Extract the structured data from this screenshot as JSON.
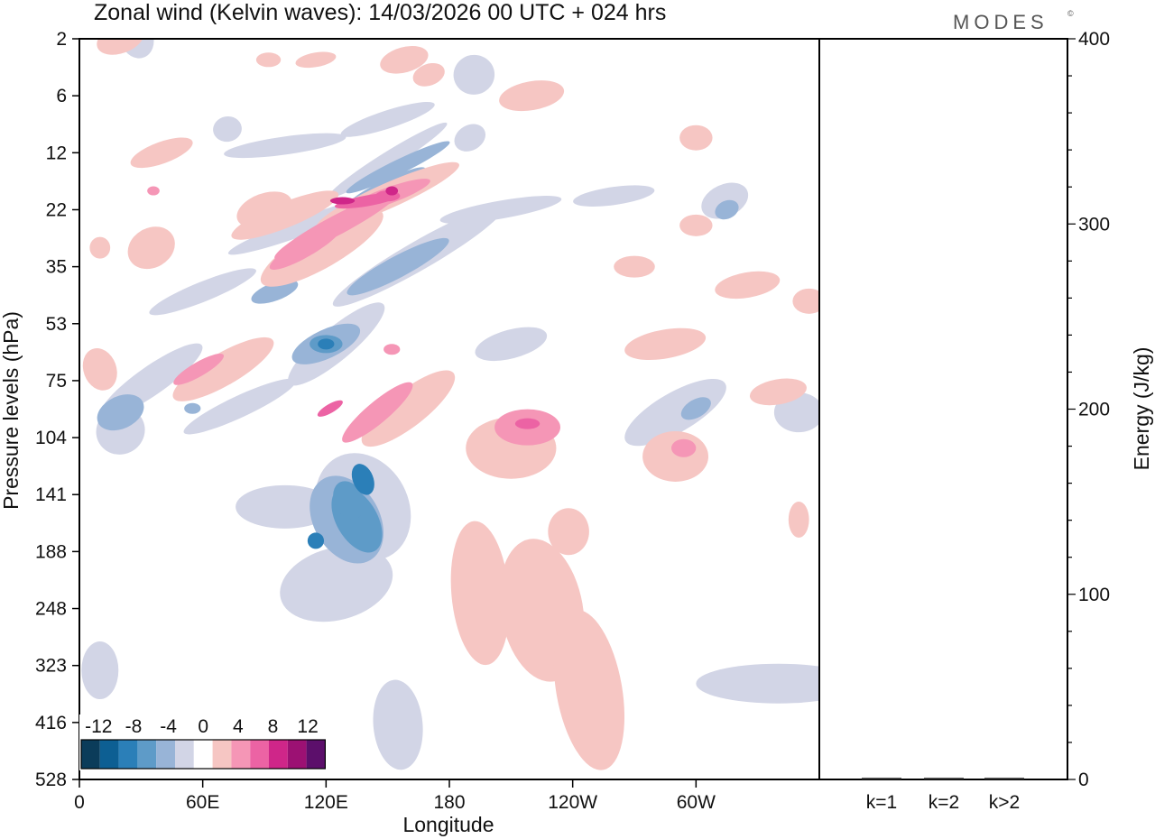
{
  "header": {
    "title": "Zonal wind (Kelvin waves):  14/03/2026  00 UTC  + 024 hrs",
    "brand": "MODES",
    "brand_mark": "©"
  },
  "chart_data": [
    {
      "type": "heatmap",
      "title": "Zonal wind (Kelvin waves):  14/03/2026  00 UTC  + 024 hrs",
      "xlabel": "Longitude",
      "ylabel": "Pressure levels (hPa)",
      "x_ticks": [
        "0",
        "60E",
        "120E",
        "180",
        "120W",
        "60W"
      ],
      "x_tick_degrees": [
        0,
        60,
        120,
        180,
        240,
        300
      ],
      "xlim": [
        0,
        360
      ],
      "y_ticks": [
        "2",
        "6",
        "12",
        "22",
        "35",
        "53",
        "75",
        "104",
        "141",
        "188",
        "248",
        "323",
        "416",
        "528"
      ],
      "colorbar": {
        "tick_labels": [
          "-12",
          "-8",
          "-4",
          "0",
          "4",
          "8",
          "12"
        ],
        "levels": [
          -14,
          -12,
          -10,
          -8,
          -6,
          -4,
          -2,
          2,
          4,
          6,
          8,
          10,
          12,
          14
        ],
        "colors": [
          "#0b3c5a",
          "#0d5f93",
          "#2b7fb8",
          "#5e9bc8",
          "#98b4d7",
          "#d2d5e6",
          "#ffffff",
          "#f6c6c3",
          "#f596b6",
          "#ec63a4",
          "#cf2689",
          "#9c1173",
          "#5c0f6b"
        ]
      },
      "features": [
        {
          "sign": "positive",
          "level": 8,
          "lon": 110,
          "hPa": 22,
          "note": "tilted positive band 95E-160E, 20-40 hPa"
        },
        {
          "sign": "negative",
          "level": -8,
          "lon": 125,
          "hPa": 60,
          "note": "negative band 105E-160E near 53-75 hPa"
        },
        {
          "sign": "negative",
          "level": -10,
          "lon": 138,
          "hPa": 150,
          "note": "strong negative core 115E-145E, 104-248 hPa"
        },
        {
          "sign": "positive",
          "level": 8,
          "lon": 217,
          "hPa": 95,
          "note": "positive core near 143W"
        },
        {
          "sign": "positive",
          "level": 4,
          "lon": 210,
          "hPa": 250,
          "note": "broad weak positive region 170E-140W, 120-528 hPa"
        }
      ]
    },
    {
      "type": "bar",
      "title": "",
      "categories": [
        "k=1",
        "k=2",
        "k>2"
      ],
      "values": [
        0.5,
        0.5,
        0.5
      ],
      "ylabel": "Energy (J/kg)",
      "y_ticks": [
        "0",
        "100",
        "200",
        "300",
        "400"
      ],
      "ylim": [
        0,
        400
      ]
    }
  ]
}
